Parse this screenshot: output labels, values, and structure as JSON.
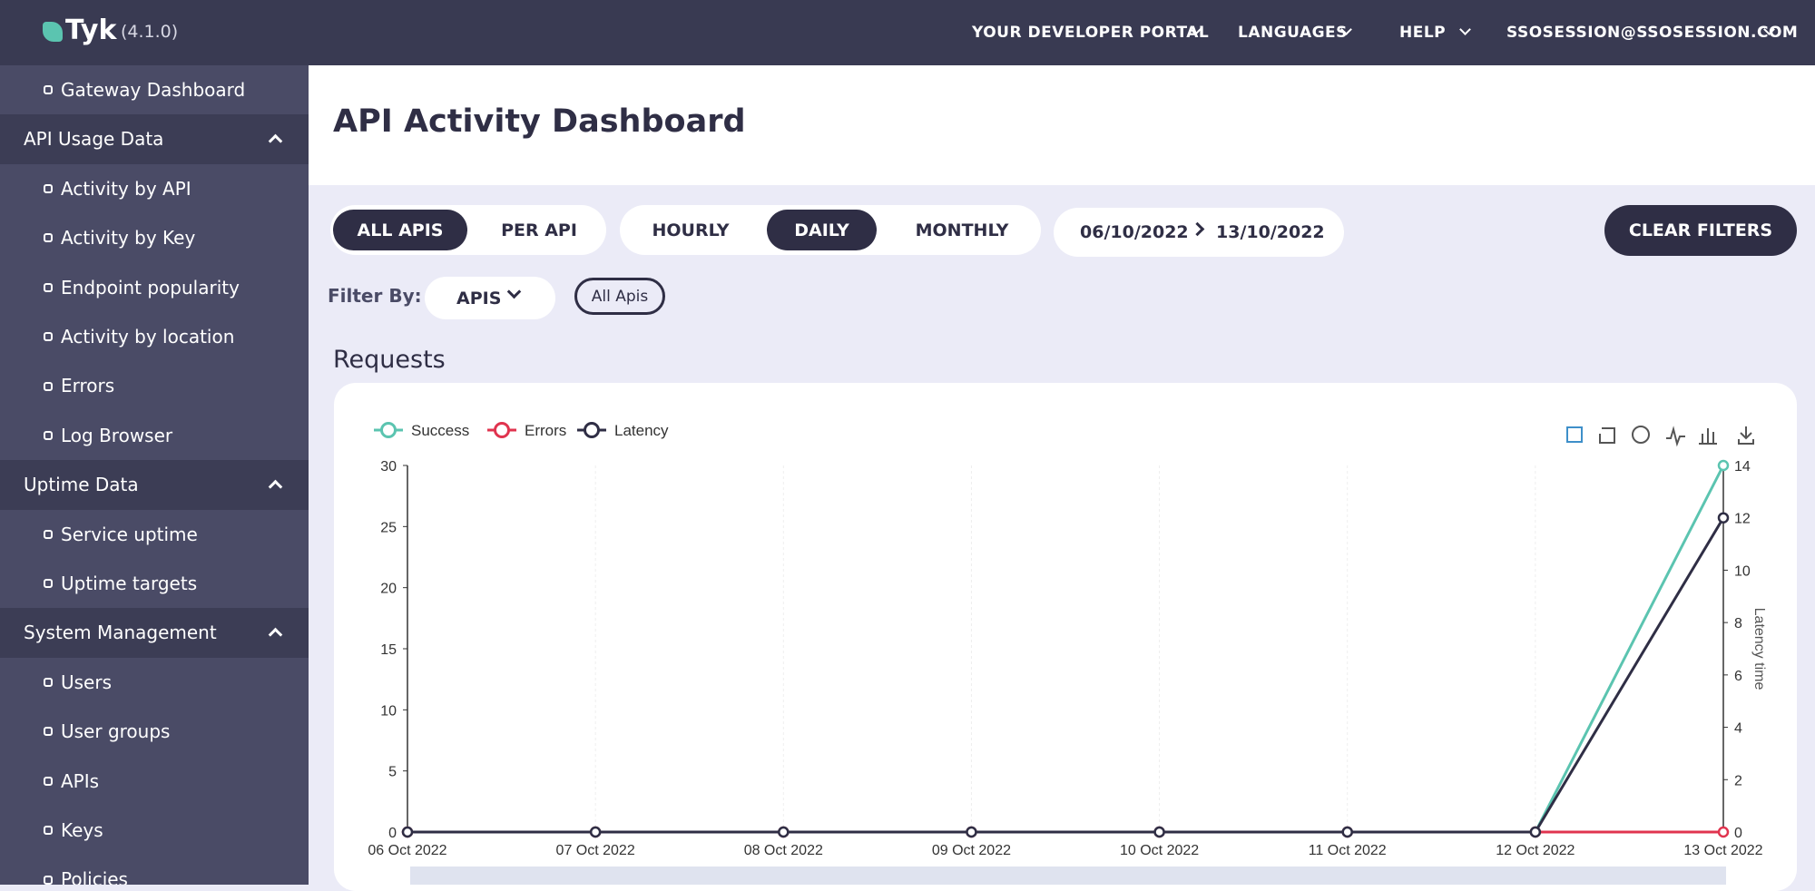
{
  "header": {
    "brand": "Tyk",
    "version": "(4.1.0)",
    "menu": [
      "YOUR DEVELOPER PORTAL",
      "LANGUAGES",
      "HELP",
      "SSOSESSION@SSOSESSION.COM"
    ]
  },
  "sidebar": {
    "top": [
      "Gateway Dashboard"
    ],
    "sections": [
      {
        "title": "API Usage Data",
        "items": [
          "Activity by API",
          "Activity by Key",
          "Endpoint popularity",
          "Activity by location",
          "Errors",
          "Log Browser"
        ]
      },
      {
        "title": "Uptime Data",
        "items": [
          "Service uptime",
          "Uptime targets"
        ]
      },
      {
        "title": "System Management",
        "items": [
          "Users",
          "User groups",
          "APIs",
          "Keys",
          "Policies"
        ]
      }
    ]
  },
  "page": {
    "title": "API Activity Dashboard",
    "scope": [
      "ALL APIS",
      "PER API"
    ],
    "interval": [
      "HOURLY",
      "DAILY",
      "MONTHLY"
    ],
    "date_from": "06/10/2022",
    "date_to": "13/10/2022",
    "clear": "CLEAR FILTERS",
    "filter_label": "Filter By:",
    "filter_select": "APIS",
    "filter_chip": "All Apis",
    "section_title": "Requests"
  },
  "chart_data": {
    "type": "line",
    "categories": [
      "06 Oct 2022",
      "07 Oct 2022",
      "08 Oct 2022",
      "09 Oct 2022",
      "10 Oct 2022",
      "11 Oct 2022",
      "12 Oct 2022",
      "13 Oct 2022"
    ],
    "series": [
      {
        "name": "Success",
        "color": "#5bc4b0",
        "values": [
          0,
          0,
          0,
          0,
          0,
          0,
          0,
          30
        ]
      },
      {
        "name": "Errors",
        "color": "#e0344f",
        "values": [
          0,
          0,
          0,
          0,
          0,
          0,
          0,
          0
        ]
      },
      {
        "name": "Latency",
        "color": "#2f2e45",
        "axis": "y2",
        "values": [
          0,
          0,
          0,
          0,
          0,
          0,
          0,
          12
        ]
      }
    ],
    "ylim": [
      0,
      30
    ],
    "yticks": [
      0,
      5,
      10,
      15,
      20,
      25,
      30
    ],
    "y2lim": [
      0,
      14
    ],
    "y2ticks": [
      0,
      2,
      4,
      6,
      8,
      10,
      12,
      14
    ],
    "y2_label": "Latency time",
    "grid": true,
    "legend": "top-left"
  }
}
